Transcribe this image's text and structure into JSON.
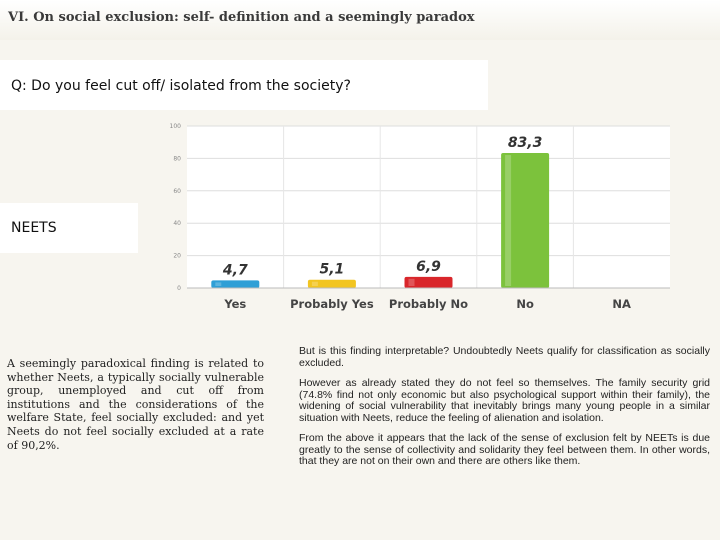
{
  "slide": {
    "title": "VI. On social exclusion: self- definition and a seemingly paradox",
    "question": "Q: Do you feel cut off/ isolated from the society?",
    "group_label": "NEETS",
    "left_text": "A seemingly paradoxical finding is related to whether Neets, a typically socially vulnerable group, unemployed and cut off from institutions and the considerations of the welfare State, feel socially excluded: and yet Neets do not feel socially excluded at a rate of 90,2%.",
    "right_paragraphs": [
      "But is this finding interpretable? Undoubtedly Neets qualify for classification as socially excluded.",
      "However as already stated they do not feel so themselves. The family security grid (74.8% find not only economic but also psychological support within their family), the widening of social vulnerability that inevitably brings many young people in a similar situation with Neets, reduce the feeling of alienation and isolation.",
      "From the above it appears that the lack of the sense of exclusion felt by NEETs is due greatly to the sense of collectivity and solidarity they feel between them. In other words, that they are not on their own and there are others like them."
    ]
  },
  "chart_data": {
    "type": "bar",
    "categories": [
      "Yes",
      "Probably Yes",
      "Probably No",
      "No",
      "NA"
    ],
    "values": [
      4.7,
      5.1,
      6.9,
      83.3,
      0
    ],
    "data_labels": [
      "4,7",
      "5,1",
      "6,9",
      "83,3",
      ""
    ],
    "colors": [
      "#2f9fd6",
      "#f2c521",
      "#d9262b",
      "#7cc23c",
      "#999999"
    ],
    "ylim": [
      0,
      100
    ],
    "yticks": [
      "0",
      "20",
      "40",
      "60",
      "80",
      "100"
    ],
    "grid": true
  }
}
